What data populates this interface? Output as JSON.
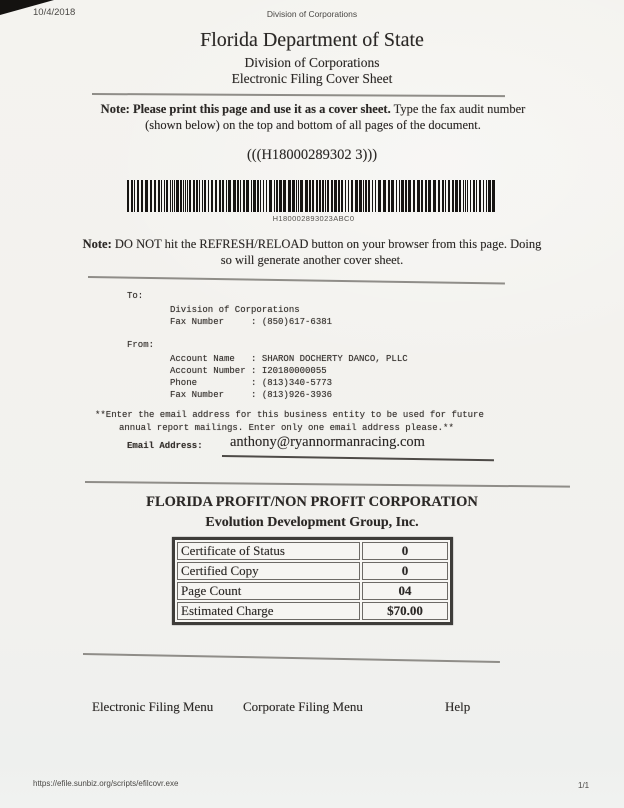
{
  "print_chrome": {
    "date": "10/4/2018",
    "header_center": "Division of Corporations",
    "url": "https://efile.sunbiz.org/scripts/efilcovr.exe",
    "page_indicator": "1/1"
  },
  "header": {
    "title": "Florida Department of State",
    "subtitle1": "Division of Corporations",
    "subtitle2": "Electronic Filing Cover Sheet"
  },
  "print_note": {
    "bold": "Note: Please print this page and use it as a cover sheet.",
    "regular": " Type the fax audit number (shown below) on the top and bottom of all pages of the document."
  },
  "fax_audit_number": "(((H18000289302 3)))",
  "barcode": {
    "text": "H180002893023ABC0"
  },
  "refresh_note": {
    "bold": "Note:",
    "regular": " DO NOT hit the REFRESH/RELOAD button on your browser from this page. Doing so will generate another cover sheet."
  },
  "to_section": {
    "label": "To:",
    "recipient": "Division of Corporations",
    "fax_line": "Fax Number     : (850)617-6381"
  },
  "from_section": {
    "label": "From:",
    "account_name_line": "Account Name   : SHARON DOCHERTY DANCO, PLLC",
    "account_number_line": "Account Number : I20180000055",
    "phone_line": "Phone          : (813)340-5773",
    "fax_line": "Fax Number     : (813)926-3936"
  },
  "email_section": {
    "instruction_line1": "**Enter the email address for this business entity to be used for future",
    "instruction_line2": "annual report mailings. Enter only one email address please.**",
    "label": "Email Address:",
    "value": "anthony@ryannormanracing.com"
  },
  "filing_section": {
    "heading": "FLORIDA PROFIT/NON PROFIT CORPORATION",
    "company_name": "Evolution Development Group, Inc.",
    "table": {
      "rows": [
        {
          "label": "Certificate of Status",
          "value": "0"
        },
        {
          "label": "Certified Copy",
          "value": "0"
        },
        {
          "label": "Page Count",
          "value": "04"
        },
        {
          "label": "Estimated Charge",
          "value": "$70.00"
        }
      ]
    }
  },
  "footer_menu": {
    "links": [
      "Electronic Filing Menu",
      "Corporate Filing Menu",
      "Help"
    ]
  }
}
